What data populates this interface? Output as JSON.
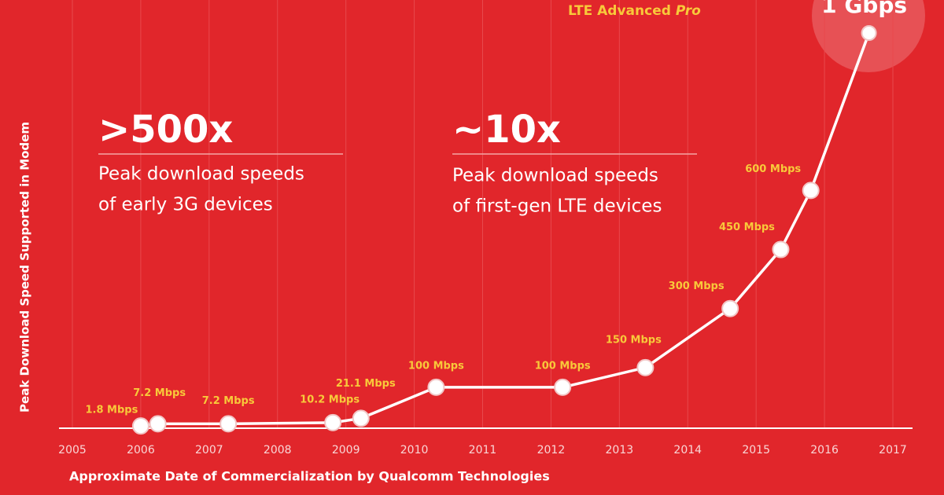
{
  "chart_data": {
    "type": "line",
    "x_label": "Approximate Date of Commercialization by Qualcomm Technologies",
    "y_label": "Peak Download Speed Supported in Modem",
    "annotations": [
      {
        "headline": ">500x",
        "lines": [
          "Peak download speeds",
          "of early 3G devices"
        ]
      },
      {
        "headline": "~10x",
        "lines": [
          "Peak download speeds",
          "of first-gen LTE devices"
        ]
      }
    ],
    "top_label": {
      "text": "LTE Advanced",
      "italic": "Pro"
    },
    "x": [
      2006.0,
      2006.25,
      2007.28,
      2008.81,
      2009.22,
      2010.32,
      2012.17,
      2013.38,
      2014.62,
      2015.36,
      2015.8,
      2016.65
    ],
    "series": [
      {
        "name": "Peak download speed",
        "color": "#ffffff",
        "values": [
          1.8,
          7.2,
          7.2,
          10.2,
          21.1,
          100,
          100,
          150,
          300,
          450,
          600,
          1000
        ],
        "value_labels": [
          "1.8 Mbps",
          "7.2 Mbps",
          "7.2 Mbps",
          "10.2 Mbps",
          "21.1 Mbps",
          "100 Mbps",
          "100 Mbps",
          "150 Mbps",
          "300 Mbps",
          "450 Mbps",
          "600 Mbps",
          "1 Gbps"
        ]
      }
    ],
    "xlim": [
      2005,
      2017
    ],
    "xticks": [
      2005,
      2006,
      2007,
      2008,
      2009,
      2010,
      2011,
      2012,
      2013,
      2014,
      2015,
      2016,
      2017
    ],
    "ylim": [
      0,
      1000
    ],
    "grid": true
  }
}
